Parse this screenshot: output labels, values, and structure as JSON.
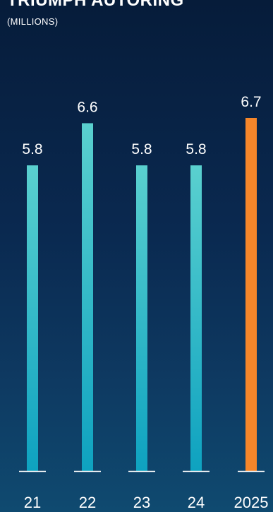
{
  "chart_data": {
    "type": "bar",
    "title": "TRIUMPH AUTORING",
    "subtitle": "(MILLIONS)",
    "categories": [
      "21",
      "22",
      "23",
      "24",
      "2025"
    ],
    "values": [
      5.8,
      6.6,
      5.8,
      5.8,
      6.7
    ],
    "value_labels": [
      "5.8",
      "6.6",
      "5.8",
      "5.8",
      "6.7"
    ],
    "ylim": [
      0,
      6.7
    ],
    "grid": false,
    "colors": {
      "bar_top": "#5ad0cf",
      "bar_bottom": "#0ea2c0",
      "highlight": "#f5862a",
      "baseline": "#ffffff"
    },
    "highlight_category": "2025"
  }
}
